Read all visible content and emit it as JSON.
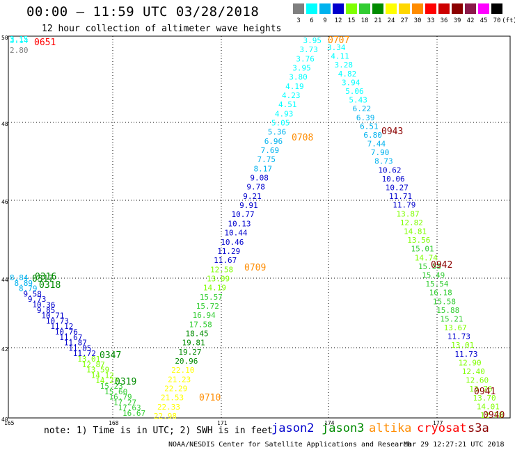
{
  "header": {
    "title": "00:00 – 11:59 UTC 03/28/2018",
    "subtitle": "12 hour collection of altimeter wave heights"
  },
  "color_scale": {
    "unit": "(ft)",
    "bins": [
      {
        "label": "3",
        "color": "#7f7f7f"
      },
      {
        "label": "6",
        "color": "#00ffff"
      },
      {
        "label": "9",
        "color": "#00b2ee"
      },
      {
        "label": "12",
        "color": "#0000cd"
      },
      {
        "label": "15",
        "color": "#7fff00"
      },
      {
        "label": "18",
        "color": "#32cd32"
      },
      {
        "label": "21",
        "color": "#008b00"
      },
      {
        "label": "24",
        "color": "#ffff00"
      },
      {
        "label": "27",
        "color": "#ffd700"
      },
      {
        "label": "30",
        "color": "#ff8c00"
      },
      {
        "label": "33",
        "color": "#ff0000"
      },
      {
        "label": "36",
        "color": "#cd0000"
      },
      {
        "label": "39",
        "color": "#8b0000"
      },
      {
        "label": "42",
        "color": "#8b1a4a"
      },
      {
        "label": "45",
        "color": "#ff00ff"
      },
      {
        "label": "70",
        "color": "#000000"
      }
    ]
  },
  "axes": {
    "lat_labels": [
      "50",
      "48",
      "46",
      "44",
      "42",
      "40"
    ],
    "lon_labels": [
      "165",
      "168",
      "171",
      "174",
      "177"
    ]
  },
  "tracks": [
    {
      "name": "track-A",
      "obs": [
        [
          "3.95",
          "#00ffff"
        ],
        [
          "3.73",
          "#00ffff"
        ],
        [
          "3.76",
          "#00ffff"
        ],
        [
          "3.95",
          "#00ffff"
        ],
        [
          "3.80",
          "#00ffff"
        ],
        [
          "4.19",
          "#00ffff"
        ],
        [
          "4.23",
          "#00ffff"
        ],
        [
          "4.51",
          "#00ffff"
        ],
        [
          "4.93",
          "#00ffff"
        ],
        [
          "5.05",
          "#00ffff"
        ],
        [
          "5.36",
          "#00b2ee"
        ],
        [
          "6.96",
          "#00b2ee"
        ],
        [
          "7.69",
          "#00b2ee"
        ],
        [
          "7.75",
          "#00b2ee"
        ],
        [
          "8.17",
          "#00b2ee"
        ],
        [
          "9.08",
          "#0000cd"
        ],
        [
          "9.78",
          "#0000cd"
        ],
        [
          "9.21",
          "#0000cd"
        ],
        [
          "9.91",
          "#0000cd"
        ],
        [
          "10.77",
          "#0000cd"
        ],
        [
          "10.13",
          "#0000cd"
        ],
        [
          "10.44",
          "#0000cd"
        ],
        [
          "10.46",
          "#0000cd"
        ],
        [
          "11.29",
          "#0000cd"
        ],
        [
          "11.67",
          "#0000cd"
        ],
        [
          "12.58",
          "#7fff00"
        ],
        [
          "13.09",
          "#7fff00"
        ],
        [
          "14.19",
          "#7fff00"
        ],
        [
          "15.57",
          "#32cd32"
        ],
        [
          "15.72",
          "#32cd32"
        ],
        [
          "16.94",
          "#32cd32"
        ],
        [
          "17.58",
          "#32cd32"
        ],
        [
          "18.45",
          "#008b00"
        ],
        [
          "19.81",
          "#008b00"
        ],
        [
          "19.27",
          "#008b00"
        ],
        [
          "20.96",
          "#008b00"
        ],
        [
          "22.10",
          "#ffff00"
        ],
        [
          "21.23",
          "#ffff00"
        ],
        [
          "22.29",
          "#ffff00"
        ],
        [
          "21.53",
          "#ffff00"
        ],
        [
          "22.33",
          "#ffff00"
        ],
        [
          "22.98",
          "#ffff00"
        ]
      ]
    },
    {
      "name": "track-B",
      "obs": [
        [
          "3.34",
          "#00ffff"
        ],
        [
          "4.11",
          "#00ffff"
        ],
        [
          "3.28",
          "#00ffff"
        ],
        [
          "4.82",
          "#00ffff"
        ],
        [
          "3.94",
          "#00ffff"
        ],
        [
          "5.06",
          "#00ffff"
        ],
        [
          "5.43",
          "#00ffff"
        ],
        [
          "6.22",
          "#00b2ee"
        ],
        [
          "6.39",
          "#00b2ee"
        ],
        [
          "6.51",
          "#00b2ee"
        ],
        [
          "6.80",
          "#00b2ee"
        ],
        [
          "7.44",
          "#00b2ee"
        ],
        [
          "7.90",
          "#00b2ee"
        ],
        [
          "8.73",
          "#00b2ee"
        ],
        [
          "10.62",
          "#0000cd"
        ],
        [
          "10.06",
          "#0000cd"
        ],
        [
          "10.27",
          "#0000cd"
        ],
        [
          "11.71",
          "#0000cd"
        ],
        [
          "11.79",
          "#0000cd"
        ],
        [
          "13.87",
          "#7fff00"
        ],
        [
          "12.82",
          "#7fff00"
        ],
        [
          "14.81",
          "#7fff00"
        ],
        [
          "13.56",
          "#7fff00"
        ],
        [
          "15.01",
          "#32cd32"
        ],
        [
          "14.74",
          "#7fff00"
        ],
        [
          "15.55",
          "#32cd32"
        ],
        [
          "15.49",
          "#32cd32"
        ],
        [
          "15.54",
          "#32cd32"
        ],
        [
          "16.18",
          "#32cd32"
        ],
        [
          "15.58",
          "#32cd32"
        ],
        [
          "15.88",
          "#32cd32"
        ],
        [
          "15.21",
          "#32cd32"
        ],
        [
          "13.67",
          "#7fff00"
        ],
        [
          "11.73",
          "#0000cd"
        ],
        [
          "13.01",
          "#7fff00"
        ],
        [
          "11.73",
          "#0000cd"
        ],
        [
          "12.90",
          "#7fff00"
        ],
        [
          "12.40",
          "#7fff00"
        ],
        [
          "12.60",
          "#7fff00"
        ],
        [
          "13.76",
          "#7fff00"
        ],
        [
          "13.70",
          "#7fff00"
        ],
        [
          "14.01",
          "#7fff00"
        ],
        [
          "12.78",
          "#7fff00"
        ]
      ]
    },
    {
      "name": "track-C",
      "obs": [
        [
          "8.84",
          "#00b2ee"
        ],
        [
          "8.89",
          "#00b2ee"
        ],
        [
          "8.79",
          "#00b2ee"
        ],
        [
          "9.58",
          "#0000cd"
        ],
        [
          "9.73",
          "#0000cd"
        ],
        [
          "10.36",
          "#0000cd"
        ],
        [
          "9.85",
          "#0000cd"
        ],
        [
          "10.71",
          "#0000cd"
        ],
        [
          "10.73",
          "#0000cd"
        ],
        [
          "11.12",
          "#0000cd"
        ],
        [
          "10.76",
          "#0000cd"
        ],
        [
          "11.67",
          "#0000cd"
        ],
        [
          "11.87",
          "#0000cd"
        ],
        [
          "11.85",
          "#0000cd"
        ],
        [
          "11.72",
          "#0000cd"
        ],
        [
          "13.01",
          "#7fff00"
        ],
        [
          "12.87",
          "#7fff00"
        ],
        [
          "13.59",
          "#7fff00"
        ],
        [
          "14.12",
          "#7fff00"
        ],
        [
          "14.27",
          "#7fff00"
        ],
        [
          "15.23",
          "#32cd32"
        ],
        [
          "15.60",
          "#32cd32"
        ],
        [
          "16.79",
          "#32cd32"
        ],
        [
          "17.27",
          "#32cd32"
        ],
        [
          "17.63",
          "#32cd32"
        ],
        [
          "16.67",
          "#32cd32"
        ]
      ]
    }
  ],
  "upper_left_values": [
    {
      "text": "3.15",
      "color": "#00ffff"
    },
    {
      "text": "3.14",
      "color": "#00ffff"
    },
    {
      "text": "2.80",
      "color": "#7f7f7f"
    }
  ],
  "time_labels": [
    {
      "text": "0651",
      "color": "#ff0000"
    },
    {
      "text": "0707",
      "color": "#ff8c00"
    },
    {
      "text": "0708",
      "color": "#ff8c00"
    },
    {
      "text": "0943",
      "color": "#8b0000"
    },
    {
      "text": "0709",
      "color": "#ff8c00"
    },
    {
      "text": "0942",
      "color": "#8b0000"
    },
    {
      "text": "0316",
      "color": "#008b00"
    },
    {
      "text": "0317",
      "color": "#008b00"
    },
    {
      "text": "0318",
      "color": "#008b00"
    },
    {
      "text": "0347",
      "color": "#008b00"
    },
    {
      "text": "0319",
      "color": "#008b00"
    },
    {
      "text": "0710",
      "color": "#ff8c00"
    },
    {
      "text": "0941",
      "color": "#8b0000"
    },
    {
      "text": "0940",
      "color": "#8b0000"
    }
  ],
  "footer": {
    "note": "note: 1) Time is in UTC; 2) SWH is in feet",
    "satellites": [
      {
        "name": "jason2",
        "color": "#0000cd"
      },
      {
        "name": "jason3",
        "color": "#008b00"
      },
      {
        "name": "altika",
        "color": "#ff8c00"
      },
      {
        "name": "cryosat",
        "color": "#ff0000"
      },
      {
        "name": "s3a",
        "color": "#8b0000"
      }
    ],
    "credit": "NOAA/NESDIS Center for Satellite Applications and Research",
    "timestamp": "Mar 29 12:27:21 UTC 2018"
  }
}
